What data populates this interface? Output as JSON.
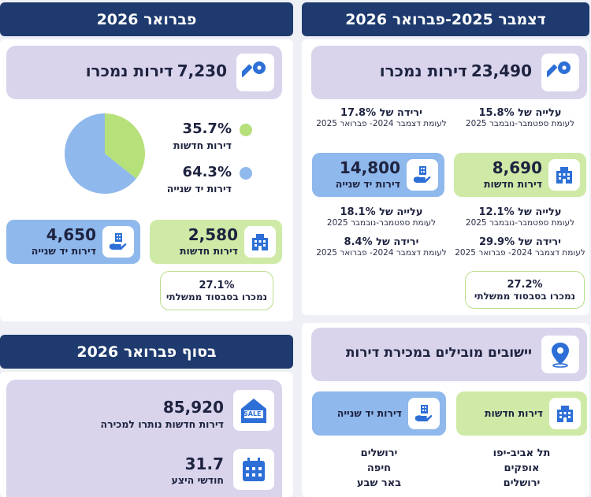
{
  "right": {
    "header": "דצמבר 2025-פברואר 2026",
    "total": {
      "value": "23,490",
      "label": "דירות נמכרו"
    },
    "change_left": {
      "title": "ירידה של 17.8%",
      "sub": "לעומת דצמבר 2024- פברואר 2025"
    },
    "change_right": {
      "title": "עלייה של 15.8%",
      "sub": "לעומת ספטמבר-נובמבר 2025"
    },
    "new_box": {
      "value": "8,690",
      "label": "דירות חדשות"
    },
    "used_box": {
      "value": "14,800",
      "label": "דירות יד שנייה"
    },
    "new_up": {
      "title": "עלייה של 12.1%",
      "sub": "לעומת ספטמבר-נובמבר 2025"
    },
    "new_down": {
      "title": "ירידה של 29.9%",
      "sub": "לעומת דצמבר 2024- פברואר 2025"
    },
    "used_up": {
      "title": "עלייה של 18.1%",
      "sub": "לעומת ספטמבר-נובמבר 2025"
    },
    "used_down": {
      "title": "ירידה של 8.4%",
      "sub": "לעומת דצמבר 2024- פברואר 2025"
    },
    "subsidy": {
      "pct": "27.2%",
      "label": "נמכרו בסבסוד ממשלתי"
    },
    "cities_title": "יישובים מובילים במכירת דירות",
    "cities_new": {
      "label": "דירות חדשות",
      "list": [
        "תל אביב-יפו",
        "אופקים",
        "ירושלים"
      ]
    },
    "cities_used": {
      "label": "דירות יד שנייה",
      "list": [
        "ירושלים",
        "חיפה",
        "באר שבע"
      ]
    }
  },
  "left": {
    "header": "פברואר 2026",
    "total": {
      "value": "7,230",
      "label": "דירות נמכרו"
    },
    "pie_legend": [
      {
        "pct": "35.7%",
        "label": "דירות חדשות",
        "color": "#b6e07a"
      },
      {
        "pct": "64.3%",
        "label": "דירות יד שנייה",
        "color": "#8fb8ec"
      }
    ],
    "new_box": {
      "value": "2,580",
      "label": "דירות חדשות"
    },
    "used_box": {
      "value": "4,650",
      "label": "דירות יד שנייה"
    },
    "subsidy": {
      "pct": "27.1%",
      "label": "נמכרו בסבסוד ממשלתי"
    },
    "end_header": "בסוף פברואר 2026",
    "inventory": {
      "value": "85,920",
      "label": "דירות חדשות נותרו למכירה"
    },
    "months": {
      "value": "31.7",
      "label": "חודשי היצע"
    },
    "sale_text": "SALE"
  },
  "chart_data": {
    "type": "pie",
    "categories": [
      "דירות חדשות",
      "דירות יד שנייה"
    ],
    "values": [
      35.7,
      64.3
    ],
    "colors": [
      "#b6e07a",
      "#8fb8ec"
    ]
  }
}
